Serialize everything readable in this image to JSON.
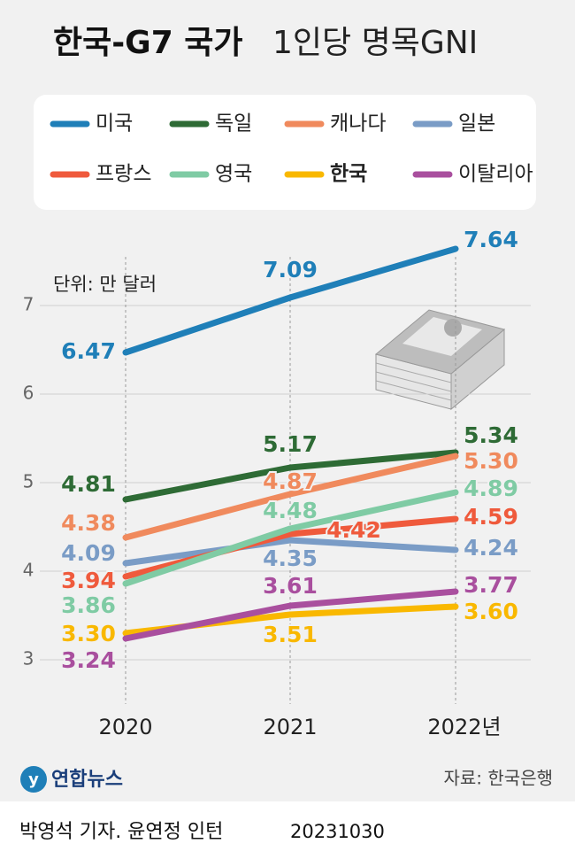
{
  "chart_data": {
    "type": "line",
    "title": "한국-G7 국가",
    "subtitle": "1인당 명목GNI",
    "unit_label": "단위: 만 달러",
    "categories": [
      "2020",
      "2021",
      "2022년"
    ],
    "series": [
      {
        "name": "미국",
        "color": "#1f7fb8",
        "values": [
          6.47,
          7.09,
          7.64
        ]
      },
      {
        "name": "독일",
        "color": "#2e6b35",
        "values": [
          4.81,
          5.17,
          5.34
        ]
      },
      {
        "name": "캐나다",
        "color": "#f08a5d",
        "values": [
          4.38,
          4.87,
          5.3
        ],
        "value_labels": [
          "4.38",
          "4.87",
          "5.30"
        ]
      },
      {
        "name": "일본",
        "color": "#7a9cc6",
        "values": [
          4.09,
          4.35,
          4.24
        ]
      },
      {
        "name": "프랑스",
        "color": "#ef5a3c",
        "values": [
          3.94,
          4.42,
          4.59
        ]
      },
      {
        "name": "영국",
        "color": "#7fcba4",
        "values": [
          3.86,
          4.48,
          4.89
        ]
      },
      {
        "name": "한국",
        "color": "#f9b800",
        "values": [
          3.3,
          3.51,
          3.6
        ],
        "value_labels": [
          "3.30",
          "3.51",
          "3.60"
        ]
      },
      {
        "name": "이탈리아",
        "color": "#a94f9e",
        "values": [
          3.24,
          3.61,
          3.77
        ]
      }
    ],
    "ylim": [
      2.5,
      8
    ],
    "yticks": [
      3,
      4,
      5,
      6,
      7
    ],
    "grid": true,
    "legend": "top",
    "source": "자료: 한국은행",
    "logo": "연합뉴스",
    "credit": "박영석 기자. 윤연정 인턴",
    "date": "20231030"
  }
}
